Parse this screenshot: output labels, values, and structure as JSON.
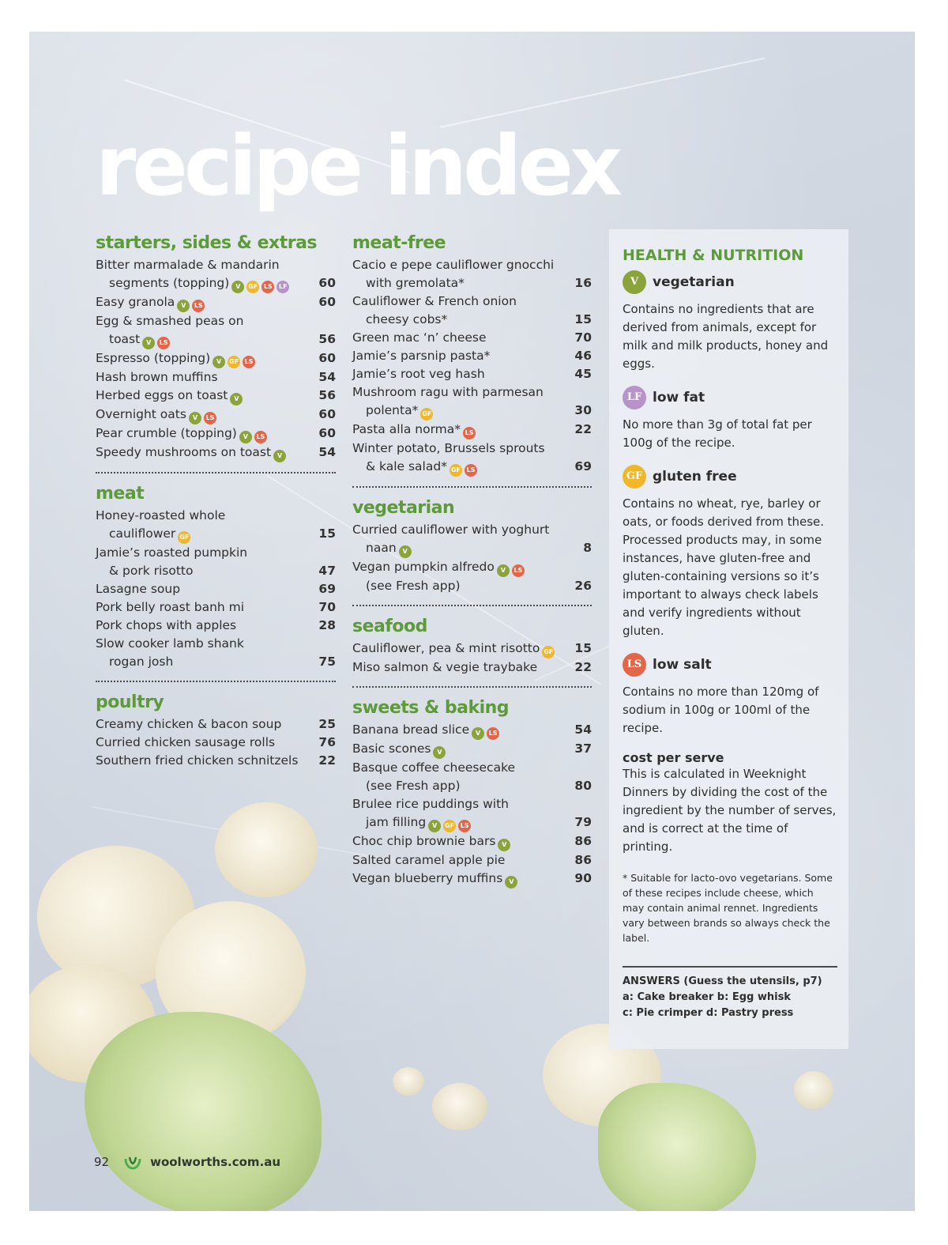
{
  "title": "recipe index",
  "columns": [
    {
      "sections": [
        {
          "heading": "starters, sides & extras",
          "items": [
            {
              "name": "Bitter marmalade & mandarin",
              "cont": "segments (topping)",
              "badges": [
                "V",
                "GF",
                "LS",
                "LF"
              ],
              "page": "60"
            },
            {
              "name": "Easy granola",
              "badges": [
                "V",
                "LS"
              ],
              "page": "60"
            },
            {
              "name": "Egg & smashed peas on",
              "cont": "toast",
              "badges": [
                "V",
                "LS"
              ],
              "page": "56"
            },
            {
              "name": "Espresso (topping)",
              "badges": [
                "V",
                "GF",
                "LS"
              ],
              "page": "60"
            },
            {
              "name": "Hash brown muffins",
              "badges": [],
              "page": "54"
            },
            {
              "name": "Herbed eggs on toast",
              "badges": [
                "V"
              ],
              "page": "56"
            },
            {
              "name": "Overnight oats",
              "badges": [
                "V",
                "LS"
              ],
              "page": "60"
            },
            {
              "name": "Pear crumble (topping)",
              "badges": [
                "V",
                "LS"
              ],
              "page": "60"
            },
            {
              "name": "Speedy mushrooms on toast",
              "badges": [
                "V"
              ],
              "page": "54"
            }
          ]
        },
        {
          "heading": "meat",
          "items": [
            {
              "name": "Honey-roasted whole",
              "cont": "cauliflower",
              "badges": [
                "GF"
              ],
              "page": "15"
            },
            {
              "name": "Jamie’s roasted pumpkin",
              "cont": "& pork risotto",
              "badges": [],
              "page": "47"
            },
            {
              "name": "Lasagne soup",
              "badges": [],
              "page": "69"
            },
            {
              "name": "Pork belly roast banh mi",
              "badges": [],
              "page": "70"
            },
            {
              "name": "Pork chops with apples",
              "badges": [],
              "page": "28"
            },
            {
              "name": "Slow cooker lamb shank",
              "cont": "rogan josh",
              "badges": [],
              "page": "75"
            }
          ]
        },
        {
          "heading": "poultry",
          "items": [
            {
              "name": "Creamy chicken & bacon soup",
              "badges": [],
              "page": "25"
            },
            {
              "name": "Curried chicken sausage rolls",
              "badges": [],
              "page": "76"
            },
            {
              "name": "Southern fried chicken schnitzels",
              "badges": [],
              "page": "22"
            }
          ]
        }
      ]
    },
    {
      "sections": [
        {
          "heading": "meat-free",
          "items": [
            {
              "name": "Cacio e pepe cauliflower gnocchi",
              "cont": "with gremolata*",
              "badges": [],
              "page": "16"
            },
            {
              "name": "Cauliflower & French onion",
              "cont": "cheesy cobs*",
              "badges": [],
              "page": "15"
            },
            {
              "name": "Green mac ‘n’ cheese",
              "badges": [],
              "page": "70"
            },
            {
              "name": "Jamie’s parsnip pasta*",
              "badges": [],
              "page": "46"
            },
            {
              "name": "Jamie’s root veg hash",
              "badges": [],
              "page": "45"
            },
            {
              "name": "Mushroom ragu with parmesan",
              "cont": "polenta*",
              "badges": [
                "GF"
              ],
              "page": "30"
            },
            {
              "name": "Pasta alla norma*",
              "badges": [
                "LS"
              ],
              "page": "22"
            },
            {
              "name": "Winter potato, Brussels sprouts",
              "cont": "& kale salad*",
              "badges": [
                "GF",
                "LS"
              ],
              "page": "69"
            }
          ]
        },
        {
          "heading": "vegetarian",
          "items": [
            {
              "name": "Curried cauliflower with yoghurt",
              "cont": "naan",
              "badges": [
                "V"
              ],
              "page": "8"
            },
            {
              "name": "Vegan pumpkin alfredo",
              "badges": [
                "V",
                "LS"
              ],
              "cont": "(see Fresh app)",
              "contPage": true,
              "page": "26"
            }
          ]
        },
        {
          "heading": "seafood",
          "items": [
            {
              "name": "Cauliflower, pea & mint risotto",
              "badges": [
                "GF"
              ],
              "page": "15"
            },
            {
              "name": "Miso salmon & vegie traybake",
              "badges": [],
              "page": "22"
            }
          ]
        },
        {
          "heading": "sweets & baking",
          "items": [
            {
              "name": "Banana bread slice",
              "badges": [
                "V",
                "LS"
              ],
              "page": "54"
            },
            {
              "name": "Basic scones",
              "badges": [
                "V"
              ],
              "page": "37"
            },
            {
              "name": "Basque coffee cheesecake",
              "cont": "(see Fresh app)",
              "badges": [],
              "page": "80"
            },
            {
              "name": "Brulee rice puddings with",
              "cont": "jam filling",
              "badges": [
                "V",
                "GF",
                "LS"
              ],
              "page": "79"
            },
            {
              "name": "Choc chip brownie bars",
              "badges": [
                "V"
              ],
              "page": "86"
            },
            {
              "name": "Salted caramel apple pie",
              "badges": [],
              "page": "86"
            },
            {
              "name": "Vegan blueberry muffins",
              "badges": [
                "V"
              ],
              "page": "90"
            }
          ]
        }
      ]
    }
  ],
  "panel": {
    "heading": "HEALTH & NUTRITION",
    "legend": [
      {
        "badge": "V",
        "color": "#8aa33a",
        "title": "vegetarian",
        "desc": "Contains no ingredients that are derived from animals, except for milk and milk products, honey and eggs."
      },
      {
        "badge": "LF",
        "color": "#b893c7",
        "title": "low fat",
        "desc": "No more than 3g of total fat per 100g of the recipe."
      },
      {
        "badge": "GF",
        "color": "#f0b72a",
        "title": "gluten free",
        "desc": "Contains no wheat, rye, barley or oats, or foods derived from these. Processed products may, in some instances, have gluten-free and gluten-containing versions so it’s important to always check labels and verify ingredients without gluten."
      },
      {
        "badge": "LS",
        "color": "#e1664a",
        "title": "low salt",
        "desc": "Contains no more than 120mg of sodium in 100g or 100ml of the recipe."
      }
    ],
    "cost_title": "cost per serve",
    "cost_desc": "This is calculated in Weeknight Dinners by dividing the cost of the ingredient by the number of serves, and is correct at the time of printing.",
    "note": "* Suitable for lacto-ovo vegetarians. Some of these recipes include cheese, which may contain animal rennet. Ingredients vary between brands so always check the label.",
    "answers_title": "ANSWERS (Guess the utensils, p7)",
    "answers_line1": "a: Cake breaker  b: Egg whisk",
    "answers_line2": "c: Pie crimper  d: Pastry press"
  },
  "footer": {
    "page_number": "92",
    "site": "woolworths.com.au"
  },
  "badge_colors": {
    "V": "#8aa33a",
    "GF": "#f0b72a",
    "LS": "#e1664a",
    "LF": "#b893c7"
  }
}
